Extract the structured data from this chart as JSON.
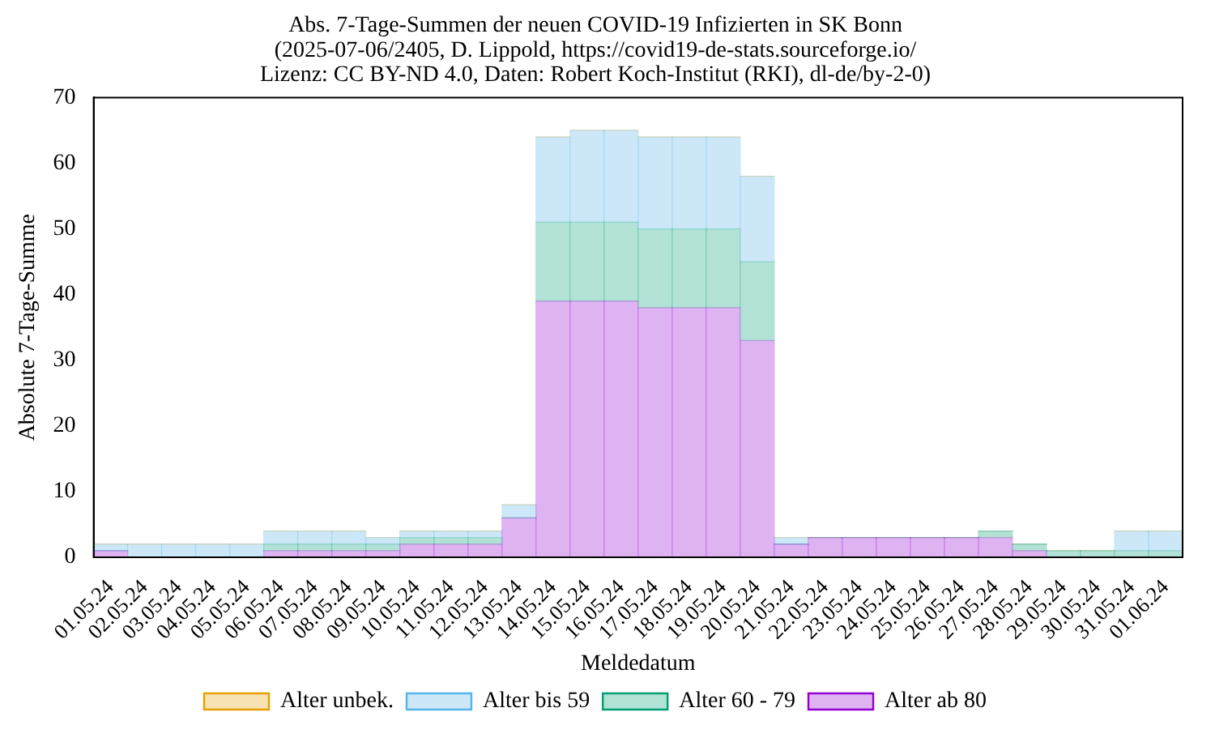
{
  "chart_data": {
    "type": "bar",
    "title": "Abs. 7-Tage-Summen der neuen COVID-19 Infizierten in SK Bonn\n(2025-07-06/2405, D. Lippold, https://covid19-de-stats.sourceforge.io/\nLizenz: CC BY-ND 4.0, Daten: Robert Koch-Institut (RKI), dl-de/by-2-0)",
    "xlabel": "Meldedatum",
    "ylabel": "Absolute 7-Tage-Summe",
    "categories": [
      "01.05.24",
      "02.05.24",
      "03.05.24",
      "04.05.24",
      "05.05.24",
      "06.05.24",
      "07.05.24",
      "08.05.24",
      "09.05.24",
      "10.05.24",
      "11.05.24",
      "12.05.24",
      "13.05.24",
      "14.05.24",
      "15.05.24",
      "16.05.24",
      "17.05.24",
      "18.05.24",
      "19.05.24",
      "20.05.24",
      "21.05.24",
      "22.05.24",
      "23.05.24",
      "24.05.24",
      "25.05.24",
      "26.05.24",
      "27.05.24",
      "28.05.24",
      "29.05.24",
      "30.05.24",
      "31.05.24",
      "01.06.24"
    ],
    "stacked": true,
    "series": [
      {
        "name": "Alter ab 80",
        "color": "#9400d3",
        "values": [
          1,
          0,
          0,
          0,
          0,
          1,
          1,
          1,
          1,
          2,
          2,
          2,
          6,
          39,
          39,
          39,
          38,
          38,
          38,
          33,
          2,
          3,
          3,
          3,
          3,
          3,
          3,
          1,
          0,
          0,
          0,
          0
        ]
      },
      {
        "name": "Alter 60 - 79",
        "color": "#009e73",
        "values": [
          0,
          0,
          0,
          0,
          0,
          1,
          1,
          1,
          1,
          1,
          1,
          1,
          0,
          12,
          12,
          12,
          12,
          12,
          12,
          12,
          0,
          0,
          0,
          0,
          0,
          0,
          1,
          1,
          1,
          1,
          1,
          1
        ]
      },
      {
        "name": "Alter bis 59",
        "color": "#56b4e9",
        "values": [
          1,
          2,
          2,
          2,
          2,
          2,
          2,
          2,
          1,
          1,
          1,
          1,
          2,
          13,
          14,
          14,
          14,
          14,
          14,
          13,
          1,
          0,
          0,
          0,
          0,
          0,
          0,
          0,
          0,
          0,
          3,
          3
        ]
      },
      {
        "name": "Alter unbek.",
        "color": "#e69f00",
        "values": [
          0,
          0,
          0,
          0,
          0,
          0,
          0,
          0,
          0,
          0,
          0,
          0,
          0,
          0,
          0,
          0,
          0,
          0,
          0,
          0,
          0,
          0,
          0,
          0,
          0,
          0,
          0,
          0,
          0,
          0,
          0,
          0
        ]
      }
    ],
    "ylim": [
      0,
      70
    ],
    "yticks": [
      0,
      10,
      20,
      30,
      40,
      50,
      60,
      70
    ],
    "grid": false,
    "legend": "bottom"
  }
}
